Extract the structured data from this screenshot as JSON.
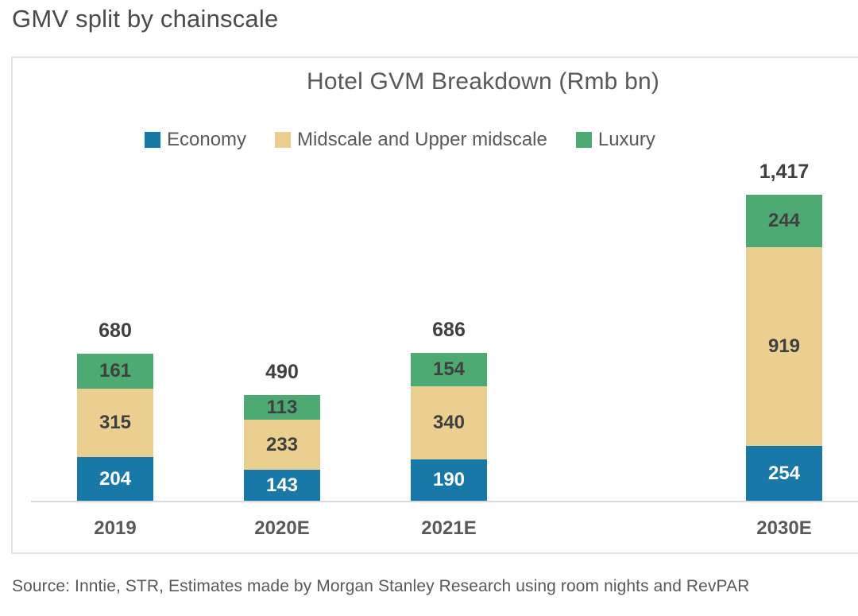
{
  "page": {
    "title": "GMV split by chainscale",
    "source": "Source: Inntie, STR, Estimates made by Morgan Stanley Research using room nights and RevPAR"
  },
  "chart_data": {
    "type": "bar",
    "stacked": true,
    "title": "Hotel GVM Breakdown (Rmb bn)",
    "categories": [
      "2019",
      "2020E",
      "2021E",
      "2030E"
    ],
    "series": [
      {
        "name": "Economy",
        "color": "#1878A8",
        "label_color": "#FFFFFF",
        "values": [
          204,
          143,
          190,
          254
        ]
      },
      {
        "name": "Midscale and Upper midscale",
        "color": "#EACF90",
        "label_color": "#404040",
        "values": [
          315,
          233,
          340,
          919
        ]
      },
      {
        "name": "Luxury",
        "color": "#4DAA72",
        "label_color": "#404040",
        "values": [
          161,
          113,
          154,
          244
        ]
      }
    ],
    "totals": [
      680,
      490,
      686,
      1417
    ],
    "total_labels": [
      "680",
      "490",
      "686",
      "1,417"
    ],
    "legend_position": "top",
    "grid": false,
    "data_labels": true,
    "ylim": [
      0,
      1500
    ],
    "axis_color": "#d9d9d9",
    "text_color": "#595959"
  }
}
